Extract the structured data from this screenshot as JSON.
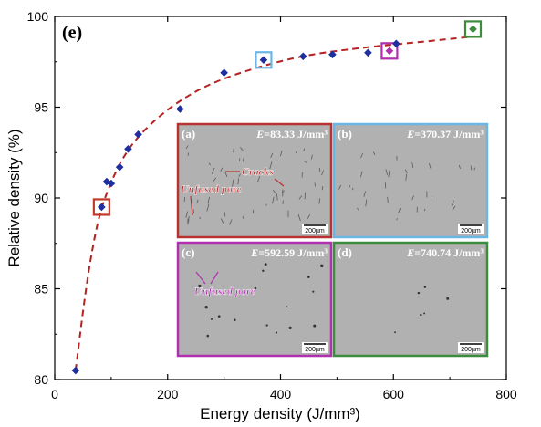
{
  "chart_data": {
    "type": "scatter",
    "panel_label": "(e)",
    "xlabel": "Energy density (J/mm³)",
    "ylabel": "Relative density (%)",
    "xlim": [
      0,
      800
    ],
    "ylim": [
      80,
      100
    ],
    "xticks": [
      "0",
      "200",
      "400",
      "600",
      "800"
    ],
    "yticks": [
      "80",
      "85",
      "90",
      "95",
      "100"
    ],
    "points": [
      {
        "x": 37,
        "y": 80.5
      },
      {
        "x": 83,
        "y": 89.5
      },
      {
        "x": 92,
        "y": 90.9
      },
      {
        "x": 100,
        "y": 90.8
      },
      {
        "x": 115,
        "y": 91.7
      },
      {
        "x": 130,
        "y": 92.7
      },
      {
        "x": 148,
        "y": 93.5
      },
      {
        "x": 222,
        "y": 94.9
      },
      {
        "x": 300,
        "y": 96.9
      },
      {
        "x": 370,
        "y": 97.6
      },
      {
        "x": 440,
        "y": 97.8
      },
      {
        "x": 492,
        "y": 97.9
      },
      {
        "x": 555,
        "y": 98.0
      },
      {
        "x": 593,
        "y": 98.1
      },
      {
        "x": 605,
        "y": 98.5
      },
      {
        "x": 741,
        "y": 99.3
      }
    ],
    "fit_curve": [
      {
        "x": 37,
        "y": 80.5
      },
      {
        "x": 55,
        "y": 85.0
      },
      {
        "x": 70,
        "y": 87.8
      },
      {
        "x": 83,
        "y": 89.5
      },
      {
        "x": 100,
        "y": 90.9
      },
      {
        "x": 120,
        "y": 92.2
      },
      {
        "x": 150,
        "y": 93.5
      },
      {
        "x": 200,
        "y": 94.9
      },
      {
        "x": 250,
        "y": 95.9
      },
      {
        "x": 300,
        "y": 96.6
      },
      {
        "x": 370,
        "y": 97.3
      },
      {
        "x": 450,
        "y": 97.9
      },
      {
        "x": 550,
        "y": 98.3
      },
      {
        "x": 650,
        "y": 98.6
      },
      {
        "x": 745,
        "y": 98.9
      }
    ],
    "highlights": [
      {
        "x": 83,
        "y": 89.5,
        "color": "#c0392b"
      },
      {
        "x": 370,
        "y": 97.6,
        "color": "#6ab7e6"
      },
      {
        "x": 593,
        "y": 98.1,
        "color": "#b030b0"
      },
      {
        "x": 741,
        "y": 99.3,
        "color": "#3d8b3d"
      }
    ],
    "marker_color": "#1f2f9e",
    "curve_color": "#b52222"
  },
  "insets": [
    {
      "label": "(a)",
      "energy_prefix": "E",
      "energy_text": "=83.33 J/mm³",
      "scale": "200µm",
      "border": "#b83232",
      "annotations": [
        "Cracks",
        "Unfused pore"
      ]
    },
    {
      "label": "(b)",
      "energy_prefix": "E",
      "energy_text": "=370.37 J/mm³",
      "scale": "200µm",
      "border": "#6ab7e6",
      "annotations": []
    },
    {
      "label": "(c)",
      "energy_prefix": "E",
      "energy_text": "=592.59 J/mm³",
      "scale": "200µm",
      "border": "#b030b0",
      "annotations": [
        "Unfused pore"
      ]
    },
    {
      "label": "(d)",
      "energy_prefix": "E",
      "energy_text": "=740.74 J/mm³",
      "scale": "200µm",
      "border": "#3d8b3d",
      "annotations": []
    }
  ]
}
